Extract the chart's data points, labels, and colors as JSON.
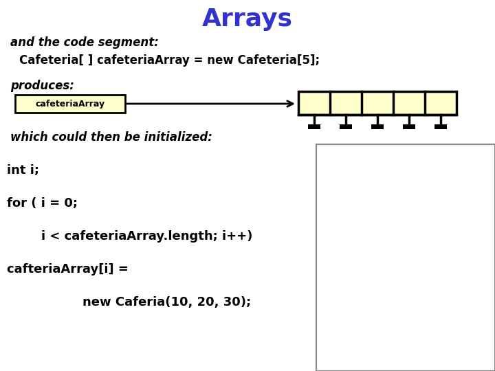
{
  "title": "Arrays",
  "title_color": "#3333cc",
  "title_fontsize": 26,
  "bg_color": "#ffffff",
  "line1": "and the code segment:",
  "line2": "Cafeteria[ ] cafeteriaArray = new Cafeteria[5];",
  "line3": "produces:",
  "label_box_text": "cafeteriaArray",
  "label_box_color": "#ffffcc",
  "label_box_border": "#000000",
  "array_fill_color": "#ffffcc",
  "array_border_color": "#000000",
  "line4": "which could then be initialized:",
  "code_line1": "int i;",
  "code_line2": "for ( i = 0;",
  "code_line3": "    i < cafeteriaArray.length; i++)",
  "code_line4": "cafteriaArray[i] =",
  "code_line5": "        new Caferia(10, 20, 30);",
  "num_cells": 5,
  "text_fontsize": 12,
  "code_fontsize": 13
}
